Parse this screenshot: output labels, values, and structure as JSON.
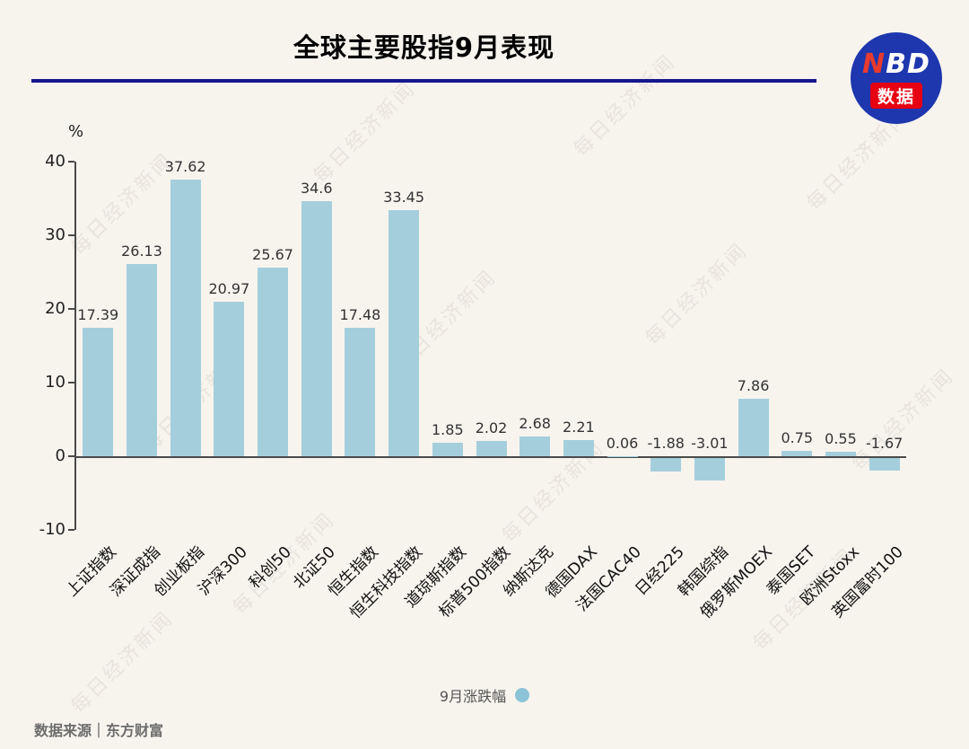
{
  "page": {
    "title": "全球主要股指9月表现",
    "unit": "%",
    "source": "数据来源｜东方财富",
    "watermark": "每日经济新闻",
    "logo": {
      "nbd_n": "N",
      "nbd_bd": "BD",
      "badge": "数据"
    }
  },
  "chart_data": {
    "type": "bar",
    "title": "全球主要股指9月表现",
    "ylabel": "%",
    "legend": "9月涨跌幅",
    "legend_position": "bottom",
    "grid": false,
    "ylim": [
      -10,
      40
    ],
    "yticks": [
      40,
      30,
      20,
      10,
      0,
      -10
    ],
    "bar_color": "#a5cedd",
    "categories": [
      "上证指数",
      "深证成指",
      "创业板指",
      "沪深300",
      "科创50",
      "北证50",
      "恒生指数",
      "恒生科技指数",
      "道琼斯指数",
      "标普500指数",
      "纳斯达克",
      "德国DAX",
      "法国CAC40",
      "日经225",
      "韩国综指",
      "俄罗斯MOEX",
      "泰国SET",
      "欧洲Stoxx",
      "英国富时100"
    ],
    "values": [
      17.39,
      26.13,
      37.62,
      20.97,
      25.67,
      34.6,
      17.48,
      33.45,
      1.85,
      2.02,
      2.68,
      2.21,
      0.06,
      -1.88,
      -3.01,
      7.86,
      0.75,
      0.55,
      -1.67
    ]
  }
}
